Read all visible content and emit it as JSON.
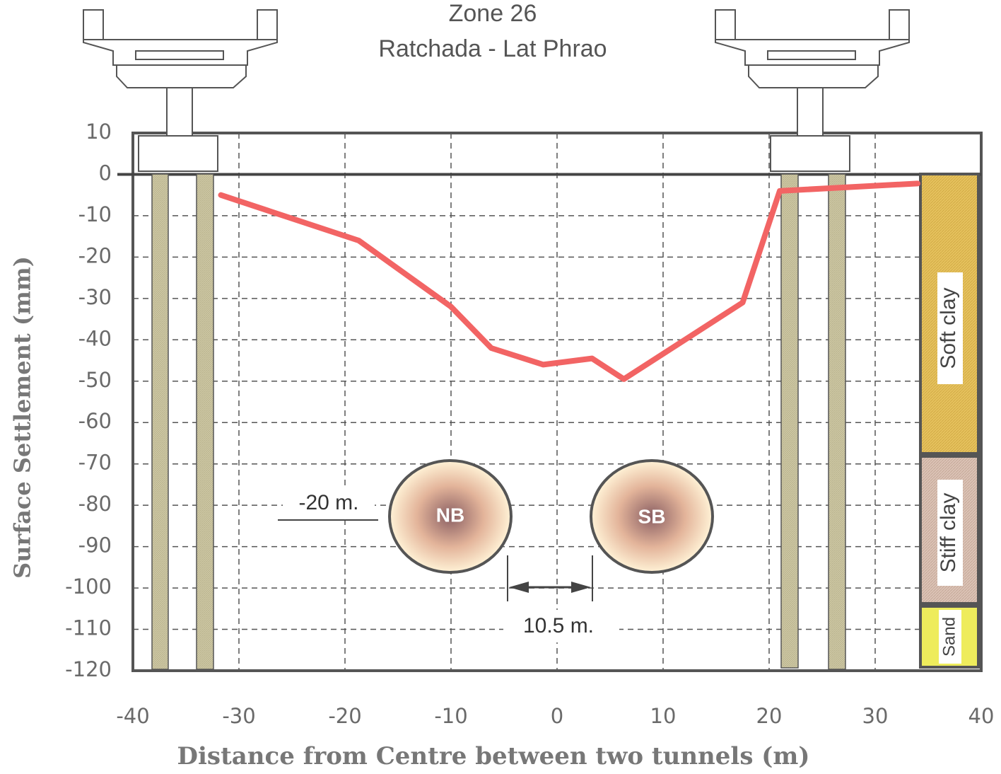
{
  "chart_data": {
    "type": "line",
    "title": "Zone 26",
    "subtitle": "Ratchada - Lat Phrao",
    "x_label": "Distance from Centre between two tunnels (m)",
    "y_label": "Surface Settlement (mm)",
    "x": [
      -31.7,
      -18.7,
      -10,
      -6.2,
      -1.3,
      3.3,
      6.3,
      17.5,
      21,
      34
    ],
    "values": [
      -5,
      -16,
      -32,
      -42,
      -46,
      -44.5,
      -49.5,
      -31,
      -4,
      -2.2
    ],
    "color": "#f26464",
    "xlim": [
      -40,
      40
    ],
    "xticks": [
      -40,
      -30,
      -20,
      -10,
      0,
      10,
      20,
      30,
      40
    ],
    "ylim": [
      -120,
      10
    ],
    "yticks": [
      10,
      0,
      -10,
      -20,
      -30,
      -40,
      -50,
      -60,
      -70,
      -80,
      -90,
      -100,
      -110,
      -120
    ],
    "grid": true,
    "annotations": {
      "depth": "-20 m.",
      "north_tunnel": "NB",
      "south_tunnel": "SB",
      "spacing": "10.5 m.",
      "layers": [
        "Soft clay",
        "Stiff clay",
        "Sand"
      ]
    }
  }
}
